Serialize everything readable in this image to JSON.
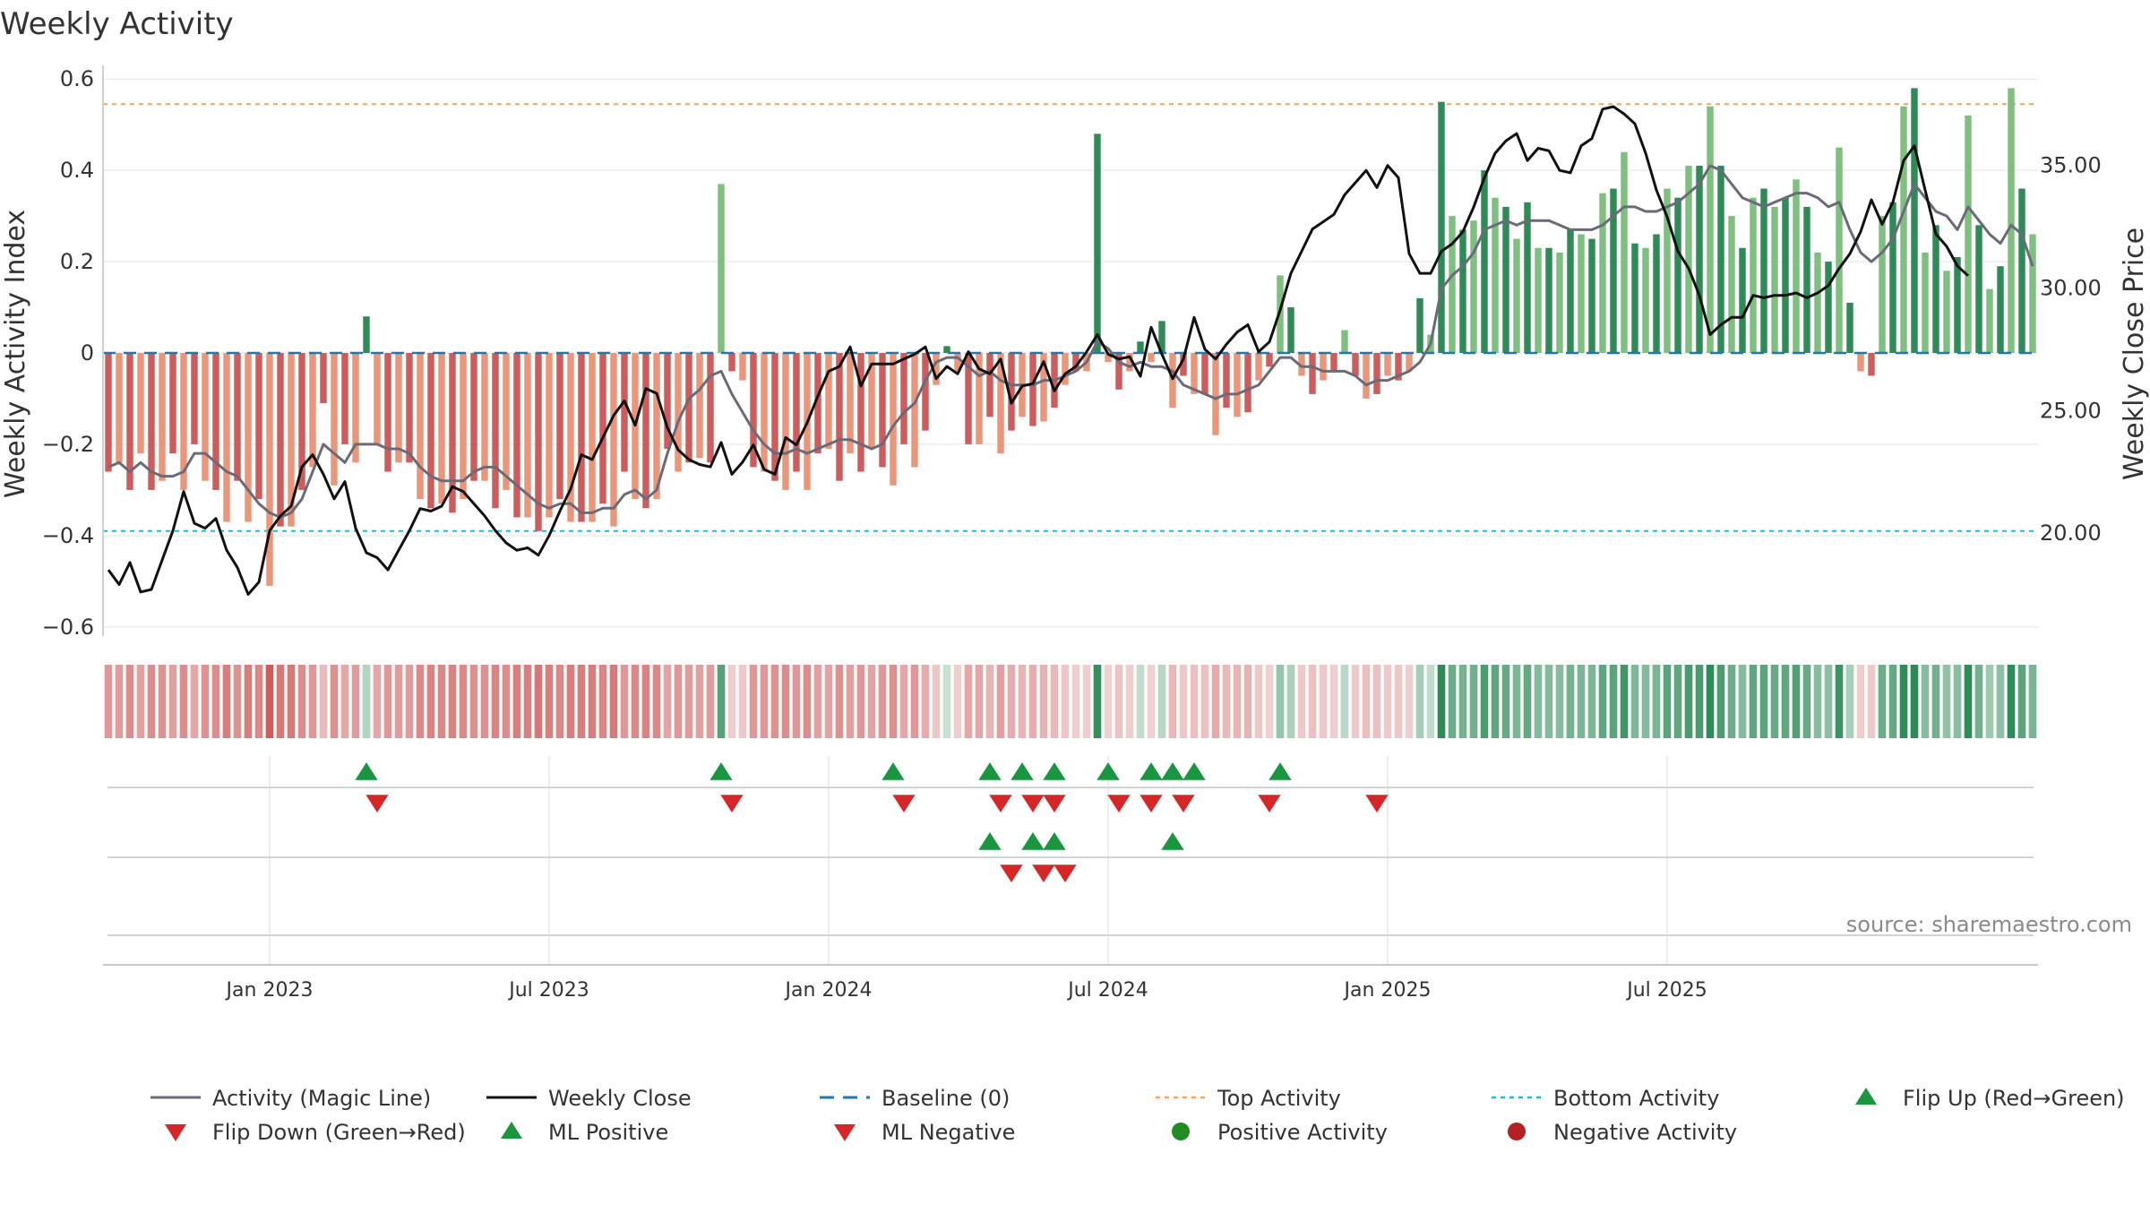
{
  "chart_data": {
    "type": "bar",
    "title": "Weekly Activity",
    "ylabel_left": "Weekly Activity Index",
    "ylabel_right": "Weekly Close Price",
    "ylim_left": [
      -0.62,
      0.62
    ],
    "ylim_right": [
      15.8,
      38.9
    ],
    "left_ticks": [
      {
        "value": 0.6,
        "label": "0.6"
      },
      {
        "value": 0.4,
        "label": "0.4"
      },
      {
        "value": 0.2,
        "label": "0.2"
      },
      {
        "value": 0,
        "label": "0"
      },
      {
        "value": -0.2,
        "label": "−0.2"
      },
      {
        "value": -0.4,
        "label": "−0.4"
      },
      {
        "value": -0.6,
        "label": "−0.6"
      }
    ],
    "right_ticks": [
      {
        "value": 35,
        "label": "35.00"
      },
      {
        "value": 30,
        "label": "30.00"
      },
      {
        "value": 25,
        "label": "25.00"
      },
      {
        "value": 20,
        "label": "20.00"
      }
    ],
    "date_ticks": [
      {
        "week": 15,
        "label": "Jan 2023"
      },
      {
        "week": 41,
        "label": "Jul 2023"
      },
      {
        "week": 67,
        "label": "Jan 2024"
      },
      {
        "week": 93,
        "label": "Jul 2024"
      },
      {
        "week": 119,
        "label": "Jan 2025"
      },
      {
        "week": 145,
        "label": "Jul 2025"
      }
    ],
    "reference_lines": {
      "top_activity": 0.545,
      "bottom_activity": -0.39,
      "baseline": 0
    },
    "activity": [
      -0.26,
      -0.24,
      -0.3,
      -0.22,
      -0.3,
      -0.28,
      -0.22,
      -0.3,
      -0.2,
      -0.28,
      -0.3,
      -0.37,
      -0.28,
      -0.37,
      -0.32,
      -0.51,
      -0.38,
      -0.38,
      -0.3,
      -0.25,
      -0.11,
      -0.29,
      -0.2,
      -0.24,
      0.08,
      -0.2,
      -0.26,
      -0.24,
      -0.24,
      -0.32,
      -0.34,
      -0.33,
      -0.35,
      -0.32,
      -0.28,
      -0.28,
      -0.34,
      -0.3,
      -0.36,
      -0.36,
      -0.39,
      -0.36,
      -0.32,
      -0.37,
      -0.37,
      -0.37,
      -0.33,
      -0.38,
      -0.26,
      -0.32,
      -0.34,
      -0.32,
      -0.21,
      -0.26,
      -0.24,
      -0.23,
      -0.24,
      0.37,
      -0.04,
      -0.06,
      -0.25,
      -0.26,
      -0.28,
      -0.3,
      -0.26,
      -0.3,
      -0.22,
      -0.21,
      -0.28,
      -0.22,
      -0.26,
      -0.21,
      -0.25,
      -0.29,
      -0.2,
      -0.25,
      -0.17,
      -0.07,
      0.015,
      -0.04,
      -0.2,
      -0.2,
      -0.14,
      -0.22,
      -0.17,
      -0.14,
      -0.16,
      -0.15,
      -0.12,
      -0.07,
      -0.04,
      -0.04,
      0.48,
      -0.02,
      -0.08,
      -0.04,
      0.025,
      -0.02,
      0.07,
      -0.12,
      -0.05,
      -0.09,
      -0.09,
      -0.18,
      -0.12,
      -0.14,
      -0.13,
      -0.06,
      -0.03,
      0.17,
      0.1,
      -0.05,
      -0.09,
      -0.06,
      -0.04,
      0.05,
      -0.05,
      -0.1,
      -0.09,
      -0.05,
      -0.06,
      -0.04,
      0.12,
      0.04,
      0.55,
      0.3,
      0.27,
      0.29,
      0.4,
      0.34,
      0.32,
      0.25,
      0.33,
      0.23,
      0.23,
      0.22,
      0.27,
      0.26,
      0.25,
      0.35,
      0.36,
      0.44,
      0.24,
      0.23,
      0.26,
      0.36,
      0.34,
      0.41,
      0.41,
      0.54,
      0.41,
      0.3,
      0.23,
      0.34,
      0.36,
      0.32,
      0.34,
      0.38,
      0.32,
      0.22,
      0.2,
      0.45,
      0.11,
      -0.04,
      -0.05,
      0.3,
      0.33,
      0.54,
      0.58,
      0.22,
      0.28,
      0.18,
      0.21,
      0.52,
      0.28,
      0.14,
      0.19,
      0.58,
      0.36,
      0.26
    ],
    "magic_line": [
      -0.25,
      -0.24,
      -0.26,
      -0.24,
      -0.26,
      -0.27,
      -0.27,
      -0.26,
      -0.22,
      -0.22,
      -0.24,
      -0.26,
      -0.27,
      -0.3,
      -0.33,
      -0.35,
      -0.36,
      -0.35,
      -0.32,
      -0.26,
      -0.2,
      -0.22,
      -0.24,
      -0.2,
      -0.2,
      -0.2,
      -0.21,
      -0.21,
      -0.22,
      -0.25,
      -0.27,
      -0.28,
      -0.28,
      -0.28,
      -0.26,
      -0.25,
      -0.25,
      -0.27,
      -0.29,
      -0.31,
      -0.33,
      -0.34,
      -0.33,
      -0.33,
      -0.35,
      -0.35,
      -0.34,
      -0.34,
      -0.31,
      -0.3,
      -0.32,
      -0.3,
      -0.22,
      -0.15,
      -0.1,
      -0.08,
      -0.05,
      -0.04,
      -0.09,
      -0.13,
      -0.17,
      -0.2,
      -0.22,
      -0.22,
      -0.21,
      -0.22,
      -0.21,
      -0.2,
      -0.19,
      -0.19,
      -0.2,
      -0.21,
      -0.2,
      -0.16,
      -0.13,
      -0.11,
      -0.06,
      -0.02,
      -0.01,
      -0.01,
      -0.03,
      -0.05,
      -0.04,
      -0.06,
      -0.07,
      -0.07,
      -0.07,
      -0.06,
      -0.06,
      -0.05,
      -0.04,
      -0.02,
      0.025,
      0.01,
      -0.02,
      -0.03,
      -0.02,
      -0.03,
      -0.03,
      -0.04,
      -0.07,
      -0.08,
      -0.09,
      -0.1,
      -0.09,
      -0.09,
      -0.08,
      -0.07,
      -0.04,
      -0.01,
      -0.01,
      -0.03,
      -0.03,
      -0.04,
      -0.04,
      -0.04,
      -0.05,
      -0.07,
      -0.06,
      -0.06,
      -0.05,
      -0.04,
      -0.02,
      0.02,
      0.14,
      0.17,
      0.19,
      0.22,
      0.27,
      0.28,
      0.29,
      0.28,
      0.29,
      0.29,
      0.29,
      0.28,
      0.27,
      0.27,
      0.27,
      0.28,
      0.3,
      0.32,
      0.32,
      0.31,
      0.31,
      0.32,
      0.33,
      0.35,
      0.37,
      0.41,
      0.4,
      0.37,
      0.34,
      0.33,
      0.32,
      0.33,
      0.34,
      0.35,
      0.35,
      0.34,
      0.32,
      0.33,
      0.27,
      0.22,
      0.2,
      0.22,
      0.25,
      0.31,
      0.37,
      0.34,
      0.31,
      0.3,
      0.27,
      0.32,
      0.29,
      0.26,
      0.24,
      0.28,
      0.26,
      0.19
    ],
    "weekly_close": [
      18.5,
      17.9,
      18.8,
      17.6,
      17.7,
      18.9,
      20.1,
      21.7,
      20.4,
      20.2,
      20.6,
      19.3,
      18.6,
      17.5,
      18.0,
      20.1,
      20.7,
      21.1,
      22.7,
      23.2,
      22.4,
      21.4,
      22.1,
      20.2,
      19.2,
      19.0,
      18.5,
      19.3,
      20.1,
      21.0,
      20.9,
      21.1,
      21.9,
      21.7,
      21.2,
      20.7,
      20.1,
      19.6,
      19.3,
      19.4,
      19.1,
      19.9,
      20.9,
      21.8,
      23.2,
      23.0,
      23.9,
      24.8,
      25.4,
      24.4,
      25.9,
      25.7,
      24.3,
      23.4,
      23.0,
      22.8,
      22.7,
      23.7,
      22.4,
      22.9,
      23.6,
      22.6,
      22.4,
      23.9,
      23.6,
      24.5,
      25.6,
      26.6,
      26.8,
      27.6,
      26.0,
      26.9,
      26.9,
      26.9,
      27.1,
      27.3,
      27.6,
      26.3,
      26.8,
      26.5,
      27.4,
      26.7,
      26.5,
      27.1,
      25.3,
      26.0,
      26.1,
      27.0,
      25.8,
      26.5,
      26.8,
      27.4,
      28.1,
      27.3,
      27.1,
      27.2,
      26.4,
      28.4,
      27.3,
      26.3,
      27.1,
      28.8,
      27.5,
      27.1,
      27.7,
      28.2,
      28.5,
      27.4,
      27.8,
      29.1,
      30.6,
      31.5,
      32.4,
      32.7,
      33.0,
      33.8,
      34.3,
      34.8,
      34.1,
      35.0,
      34.5,
      31.4,
      30.6,
      30.6,
      31.5,
      31.8,
      32.3,
      33.3,
      34.5,
      35.5,
      36.0,
      36.3,
      35.2,
      35.7,
      35.6,
      34.8,
      34.7,
      35.8,
      36.1,
      37.3,
      37.4,
      37.1,
      36.7,
      35.5,
      34.0,
      32.9,
      31.5,
      30.8,
      29.7,
      28.1,
      28.5,
      28.8,
      28.8,
      29.7,
      29.6,
      29.7,
      29.7,
      29.8,
      29.6,
      29.8,
      30.1,
      30.8,
      31.4,
      32.3,
      33.6,
      32.6,
      33.5,
      35.2,
      35.8,
      34.0,
      32.2,
      31.7,
      30.9,
      30.5
    ],
    "flip_events": [
      {
        "label": "Flip up",
        "week": 24,
        "dir": "up"
      },
      {
        "label": "Flip down",
        "week": 25,
        "dir": "down"
      },
      {
        "label": "Flip up",
        "week": 57,
        "dir": "up"
      },
      {
        "label": "Flip down",
        "week": 58,
        "dir": "down"
      },
      {
        "label": "Flip up",
        "week": 73,
        "dir": "up"
      },
      {
        "label": "Flip down",
        "week": 74,
        "dir": "down"
      },
      {
        "label": "Flip up",
        "week": 82,
        "dir": "up"
      },
      {
        "label": "Flip down",
        "week": 83,
        "dir": "down"
      },
      {
        "label": "Flip up",
        "week": 85,
        "dir": "up"
      },
      {
        "label": "Flip down",
        "week": 86,
        "dir": "down"
      },
      {
        "label": "Flip up",
        "week": 88,
        "dir": "up"
      },
      {
        "label": "Flip down",
        "week": 88,
        "dir": "down"
      },
      {
        "label": "Flip up",
        "week": 93,
        "dir": "up"
      },
      {
        "label": "Flip down",
        "week": 94,
        "dir": "down"
      },
      {
        "label": "Flip up",
        "week": 97,
        "dir": "up"
      },
      {
        "label": "Flip down",
        "week": 97,
        "dir": "down"
      },
      {
        "label": "Flip up",
        "week": 99,
        "dir": "up"
      },
      {
        "label": "Flip down",
        "week": 100,
        "dir": "down"
      },
      {
        "label": "Flip up",
        "week": 101,
        "dir": "up"
      },
      {
        "label": "Flip down",
        "week": 108,
        "dir": "down"
      },
      {
        "label": "Flip up",
        "week": 109,
        "dir": "up"
      },
      {
        "label": "Flip down",
        "week": 118,
        "dir": "down"
      }
    ],
    "ml_events": [
      {
        "label": "ML positive",
        "week": 82,
        "dir": "up"
      },
      {
        "label": "ML negative",
        "week": 84,
        "dir": "down"
      },
      {
        "label": "ML positive",
        "week": 86,
        "dir": "up"
      },
      {
        "label": "ML negative",
        "week": 87,
        "dir": "down"
      },
      {
        "label": "ML positive",
        "week": 88,
        "dir": "up"
      },
      {
        "label": "ML negative",
        "week": 89,
        "dir": "down"
      },
      {
        "label": "ML positive",
        "week": 99,
        "dir": "up"
      }
    ],
    "legend": [
      {
        "key": "magic",
        "label": "Activity (Magic Line)"
      },
      {
        "key": "close",
        "label": "Weekly Close"
      },
      {
        "key": "baseline",
        "label": "Baseline (0)"
      },
      {
        "key": "top",
        "label": "Top Activity"
      },
      {
        "key": "bottom",
        "label": "Bottom Activity"
      },
      {
        "key": "flipup",
        "label": "Flip Up (Red→Green)"
      },
      {
        "key": "flipdown",
        "label": "Flip Down (Green→Red)"
      },
      {
        "key": "mlpos",
        "label": "ML Positive"
      },
      {
        "key": "mlneg",
        "label": "ML Negative"
      },
      {
        "key": "posact",
        "label": "Positive Activity"
      },
      {
        "key": "negact",
        "label": "Negative Activity"
      }
    ],
    "source": "source: sharemaestro.com"
  },
  "colors": {
    "pos_strong": "#2e8b57",
    "pos_light": "#7fbf7f",
    "neg_strong": "#cd5c5c",
    "neg_light": "#e9967a",
    "magic_line": "#6b6b78",
    "close_line": "#111111",
    "baseline": "#1f77b4",
    "top_line": "#f4a460",
    "bottom_line": "#17becf",
    "marker_up": "#1a9641",
    "marker_down": "#d62728",
    "dot_pos": "#228b22",
    "dot_neg": "#b22222"
  }
}
